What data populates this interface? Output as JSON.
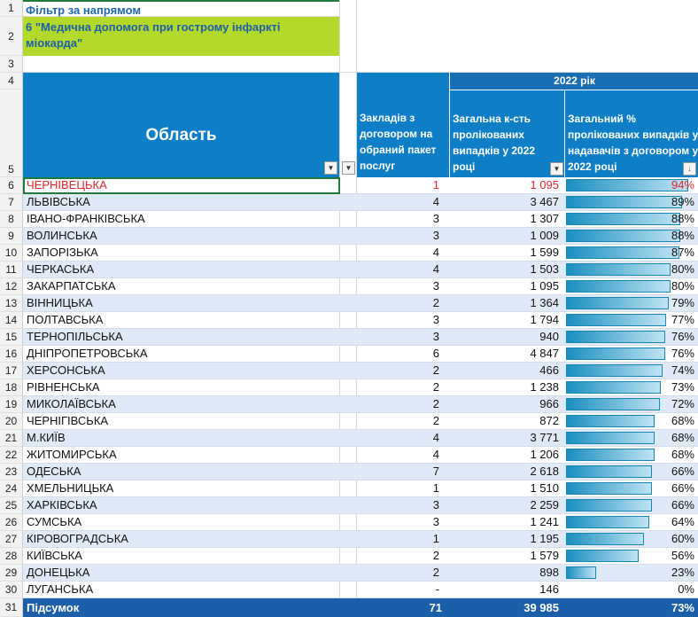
{
  "filter": {
    "label": "Фільтр за напрямом",
    "value": "6 \"Медична допомога при гострому інфаркті міокарда\""
  },
  "header": {
    "region": "Область",
    "year": "2022 рік",
    "count_col": "Закладів з договором на обраний пакет послуг",
    "cases_col": "Загальна к-сть пролікованих випадків у 2022 році",
    "pct_col": "Загальний % пролікованих випадків у надавачів з договором у 2022 році"
  },
  "row_numbers": [
    "1",
    "2",
    "3",
    "4",
    "5",
    "6",
    "7",
    "8",
    "9",
    "10",
    "11",
    "12",
    "13",
    "14",
    "15",
    "16",
    "17",
    "18",
    "19",
    "20",
    "21",
    "22",
    "23",
    "24",
    "25",
    "26",
    "27",
    "28",
    "29",
    "30",
    "31"
  ],
  "rows": [
    {
      "region": "ЧЕРНІВЕЦЬКА",
      "count": "1",
      "cases": "1 095",
      "pct": "94%",
      "fill": 0.94
    },
    {
      "region": "ЛЬВІВСЬКА",
      "count": "4",
      "cases": "3 467",
      "pct": "89%",
      "fill": 0.89
    },
    {
      "region": "ІВАНО-ФРАНКІВСЬКА",
      "count": "3",
      "cases": "1 307",
      "pct": "88%",
      "fill": 0.88
    },
    {
      "region": "ВОЛИНСЬКА",
      "count": "3",
      "cases": "1 009",
      "pct": "88%",
      "fill": 0.88
    },
    {
      "region": "ЗАПОРІЗЬКА",
      "count": "4",
      "cases": "1 599",
      "pct": "87%",
      "fill": 0.87
    },
    {
      "region": "ЧЕРКАСЬКА",
      "count": "4",
      "cases": "1 503",
      "pct": "80%",
      "fill": 0.8
    },
    {
      "region": "ЗАКАРПАТСЬКА",
      "count": "3",
      "cases": "1 095",
      "pct": "80%",
      "fill": 0.8
    },
    {
      "region": "ВІННИЦЬКА",
      "count": "2",
      "cases": "1 364",
      "pct": "79%",
      "fill": 0.79
    },
    {
      "region": "ПОЛТАВСЬКА",
      "count": "3",
      "cases": "1 794",
      "pct": "77%",
      "fill": 0.77
    },
    {
      "region": "ТЕРНОПІЛЬСЬКА",
      "count": "3",
      "cases": "940",
      "pct": "76%",
      "fill": 0.76
    },
    {
      "region": "ДНІПРОПЕТРОВСЬКА",
      "count": "6",
      "cases": "4 847",
      "pct": "76%",
      "fill": 0.76
    },
    {
      "region": "ХЕРСОНСЬКА",
      "count": "2",
      "cases": "466",
      "pct": "74%",
      "fill": 0.74
    },
    {
      "region": "РІВНЕНСЬКА",
      "count": "2",
      "cases": "1 238",
      "pct": "73%",
      "fill": 0.73
    },
    {
      "region": "МИКОЛАЇВСЬКА",
      "count": "2",
      "cases": "966",
      "pct": "72%",
      "fill": 0.72
    },
    {
      "region": "ЧЕРНІГІВСЬКА",
      "count": "2",
      "cases": "872",
      "pct": "68%",
      "fill": 0.68
    },
    {
      "region": "М.КИЇВ",
      "count": "4",
      "cases": "3 771",
      "pct": "68%",
      "fill": 0.68
    },
    {
      "region": "ЖИТОМИРСЬКА",
      "count": "4",
      "cases": "1 206",
      "pct": "68%",
      "fill": 0.68
    },
    {
      "region": "ОДЕСЬКА",
      "count": "7",
      "cases": "2 618",
      "pct": "66%",
      "fill": 0.66
    },
    {
      "region": "ХМЕЛЬНИЦЬКА",
      "count": "1",
      "cases": "1 510",
      "pct": "66%",
      "fill": 0.66
    },
    {
      "region": "ХАРКІВСЬКА",
      "count": "3",
      "cases": "2 259",
      "pct": "66%",
      "fill": 0.66
    },
    {
      "region": "СУМСЬКА",
      "count": "3",
      "cases": "1 241",
      "pct": "64%",
      "fill": 0.64
    },
    {
      "region": "КІРОВОГРАДСЬКА",
      "count": "1",
      "cases": "1 195",
      "pct": "60%",
      "fill": 0.6
    },
    {
      "region": "КИЇВСЬКА",
      "count": "2",
      "cases": "1 579",
      "pct": "56%",
      "fill": 0.56
    },
    {
      "region": "ДОНЕЦЬКА",
      "count": "2",
      "cases": "898",
      "pct": "23%",
      "fill": 0.23
    },
    {
      "region": "ЛУГАНСЬКА",
      "count": "-",
      "cases": "146",
      "pct": "0%",
      "fill": 0
    }
  ],
  "total": {
    "label": "Підсумок",
    "count": "71",
    "cases": "39 985",
    "pct": "73%"
  },
  "colors": {
    "header_blue": "#0e7fc6",
    "total_blue": "#1b5fa8",
    "filter_green": "#b3d92b",
    "highlight_red": "#e3272a"
  },
  "icons": {
    "filter": "filter-dropdown-icon",
    "sort": "sort-desc-filter-icon"
  }
}
